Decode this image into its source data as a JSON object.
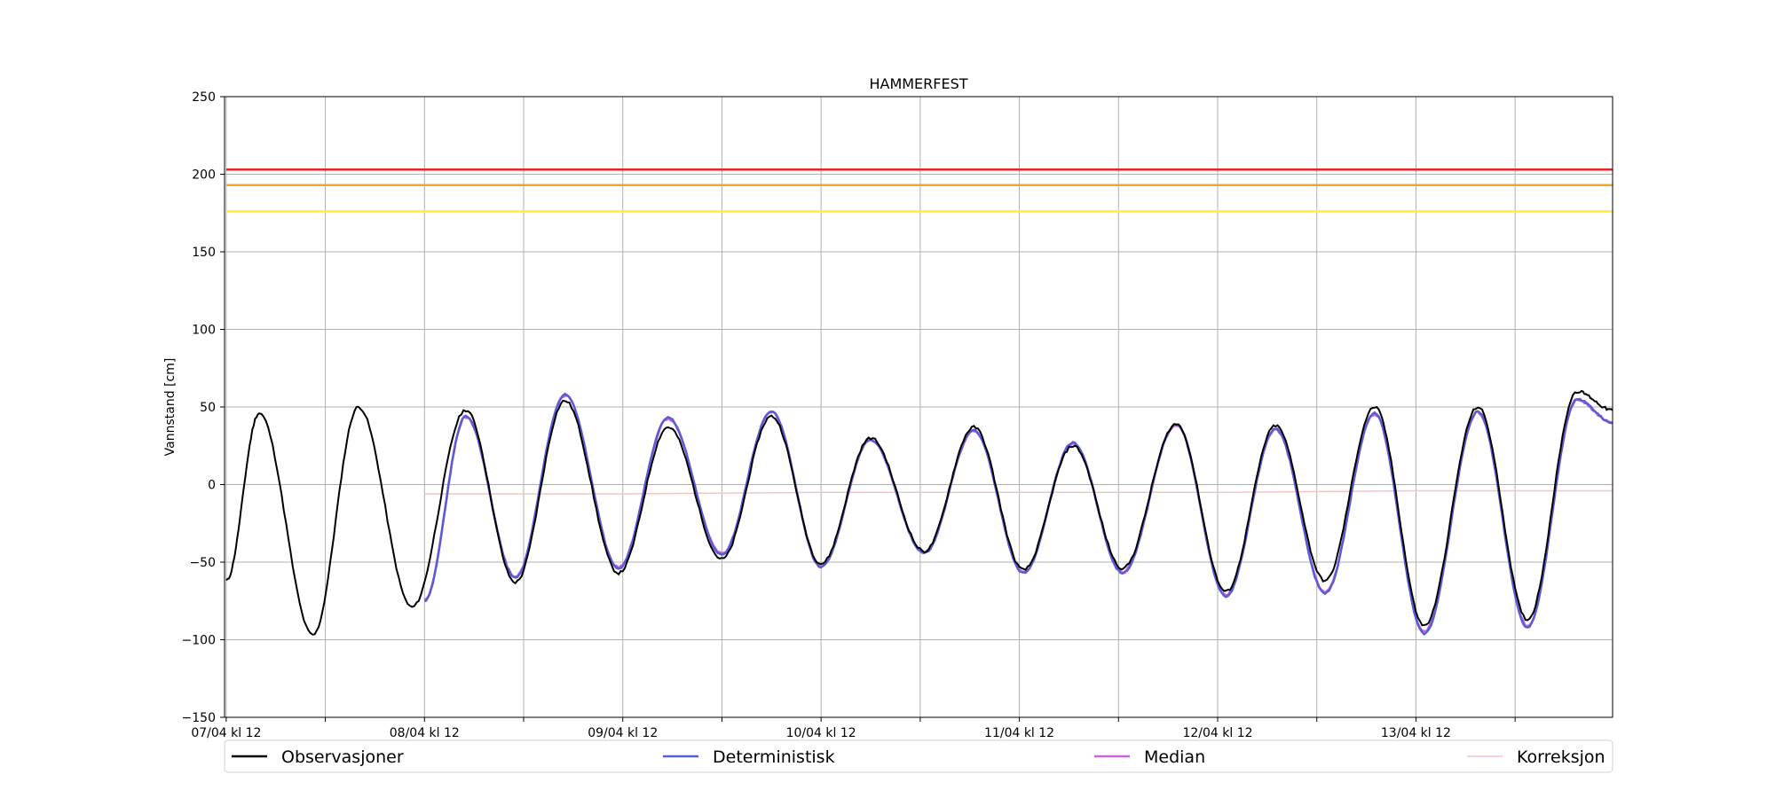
{
  "chart_data": {
    "type": "line",
    "title": "HAMMERFEST",
    "ylabel": "Vannstand [cm]",
    "xlabel": "",
    "ylim": [
      -150,
      250
    ],
    "y_ticks": [
      -150,
      -100,
      -50,
      0,
      50,
      100,
      150,
      200,
      250
    ],
    "x_range_hours": [
      -0.2,
      167.8
    ],
    "x_tick_labels": [
      {
        "hour": 0,
        "label": "07/04 kl 12"
      },
      {
        "hour": 24,
        "label": "08/04 kl 12"
      },
      {
        "hour": 48,
        "label": "09/04 kl 12"
      },
      {
        "hour": 72,
        "label": "10/04 kl 12"
      },
      {
        "hour": 96,
        "label": "11/04 kl 12"
      },
      {
        "hour": 120,
        "label": "12/04 kl 12"
      },
      {
        "hour": 144,
        "label": "13/04 kl 12"
      }
    ],
    "minor_x_ticks_hours": [
      12,
      36,
      60,
      84,
      108,
      132,
      156
    ],
    "grid": true,
    "legend_position": "bottom",
    "thresholds": [
      {
        "value": 203,
        "color": "#e8262a"
      },
      {
        "value": 193,
        "color": "#f5a623"
      },
      {
        "value": 176,
        "color": "#ffee33"
      }
    ],
    "observation_extrema": [
      [
        0,
        -62
      ],
      [
        4,
        46
      ],
      [
        10.5,
        -97
      ],
      [
        16,
        50
      ],
      [
        22.5,
        -79
      ],
      [
        29,
        48
      ],
      [
        35,
        -63
      ],
      [
        41,
        54
      ],
      [
        47.5,
        -57
      ],
      [
        53.5,
        37
      ],
      [
        60,
        -48
      ],
      [
        66,
        44
      ],
      [
        72,
        -51
      ],
      [
        78,
        30
      ],
      [
        84.5,
        -43
      ],
      [
        90.5,
        37
      ],
      [
        96.5,
        -55
      ],
      [
        102.5,
        25
      ],
      [
        108.5,
        -54
      ],
      [
        115,
        39
      ],
      [
        121,
        -69
      ],
      [
        127,
        38
      ],
      [
        133,
        -62
      ],
      [
        139,
        50
      ],
      [
        145,
        -91
      ],
      [
        151.5,
        50
      ],
      [
        157.5,
        -87
      ],
      [
        163.5,
        60
      ],
      [
        167.8,
        48
      ]
    ],
    "forecast_extrema": [
      [
        24,
        -75
      ],
      [
        29,
        44
      ],
      [
        35,
        -60
      ],
      [
        41,
        58
      ],
      [
        47.5,
        -54
      ],
      [
        53.5,
        43
      ],
      [
        60,
        -45
      ],
      [
        66,
        47
      ],
      [
        72,
        -53
      ],
      [
        78,
        29
      ],
      [
        84.5,
        -44
      ],
      [
        90.5,
        35
      ],
      [
        96.5,
        -57
      ],
      [
        102.5,
        27
      ],
      [
        108.5,
        -57
      ],
      [
        115,
        39
      ],
      [
        121,
        -72
      ],
      [
        127,
        36
      ],
      [
        133,
        -70
      ],
      [
        139,
        46
      ],
      [
        145,
        -96
      ],
      [
        151.5,
        47
      ],
      [
        157.5,
        -92
      ],
      [
        163.5,
        55
      ],
      [
        167.8,
        40
      ]
    ],
    "correction_points": [
      [
        24,
        -6
      ],
      [
        48,
        -6
      ],
      [
        72,
        -5
      ],
      [
        96,
        -5
      ],
      [
        120,
        -5
      ],
      [
        144,
        -4
      ],
      [
        167.8,
        -4
      ]
    ],
    "series": [
      {
        "name": "Observasjoner",
        "color": "#000000"
      },
      {
        "name": "Deterministisk",
        "color": "#5b5bd6"
      },
      {
        "name": "Median",
        "color": "#c865d8"
      },
      {
        "name": "Korreksjon",
        "color": "#f3c6c6"
      }
    ]
  }
}
